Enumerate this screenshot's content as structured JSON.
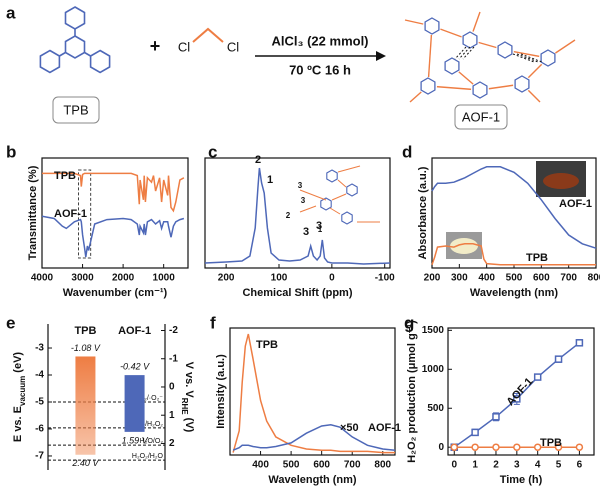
{
  "scheme": {
    "label": "a",
    "reactant": "TPB",
    "reagent_atoms": [
      "Cl",
      "Cl"
    ],
    "conditions": [
      "AlCl₃ (22 mmol)",
      "70 ºC 16 h"
    ],
    "product": "AOF-1"
  },
  "chart_data": [
    {
      "label": "b",
      "type": "line",
      "xlabel": "Wavenumber (cm⁻¹)",
      "ylabel": "Transmittance (%)",
      "xlim": [
        4000,
        400
      ],
      "xticks": [
        4000,
        3000,
        2000,
        1000
      ],
      "ylim": [
        0,
        1
      ],
      "highlight": [
        3100,
        2800
      ],
      "x": [
        4000,
        3700,
        3500,
        3400,
        3200,
        3050,
        3030,
        3000,
        2950,
        2920,
        2880,
        2850,
        2700,
        2400,
        2000,
        1800,
        1650,
        1600,
        1580,
        1500,
        1480,
        1450,
        1400,
        1300,
        1250,
        1200,
        1100,
        1050,
        1000,
        900,
        880,
        820,
        760,
        700,
        600,
        500
      ],
      "series": [
        {
          "name": "TPB",
          "color": "#ee7d43",
          "values": [
            0.86,
            0.86,
            0.86,
            0.86,
            0.86,
            0.84,
            0.74,
            0.85,
            0.86,
            0.86,
            0.86,
            0.86,
            0.86,
            0.86,
            0.86,
            0.86,
            0.84,
            0.58,
            0.8,
            0.62,
            0.84,
            0.6,
            0.82,
            0.78,
            0.84,
            0.7,
            0.82,
            0.6,
            0.8,
            0.66,
            0.84,
            0.55,
            0.52,
            0.6,
            0.8,
            0.82
          ]
        },
        {
          "name": "AOF-1",
          "color": "#4e68b8",
          "values": [
            0.47,
            0.45,
            0.38,
            0.36,
            0.42,
            0.44,
            0.42,
            0.3,
            0.18,
            0.1,
            0.2,
            0.16,
            0.4,
            0.44,
            0.45,
            0.44,
            0.4,
            0.3,
            0.38,
            0.32,
            0.4,
            0.3,
            0.42,
            0.44,
            0.42,
            0.4,
            0.43,
            0.36,
            0.42,
            0.42,
            0.38,
            0.28,
            0.38,
            0.42,
            0.44,
            0.45
          ]
        }
      ]
    },
    {
      "label": "c",
      "type": "line",
      "xlabel": "Chemical Shift (ppm)",
      "xlim": [
        240,
        -110
      ],
      "xticks": [
        200,
        100,
        0,
        -100
      ],
      "ylim": [
        0,
        1.1
      ],
      "x": [
        240,
        200,
        170,
        155,
        145,
        140,
        137,
        133,
        128,
        122,
        115,
        100,
        80,
        60,
        45,
        40,
        35,
        28,
        22,
        18,
        14,
        8,
        0,
        -30,
        -60,
        -110
      ],
      "series": [
        {
          "color": "#4e68b8",
          "values": [
            0.05,
            0.06,
            0.07,
            0.12,
            0.4,
            0.8,
            1.0,
            0.85,
            0.75,
            0.4,
            0.15,
            0.08,
            0.07,
            0.08,
            0.12,
            0.22,
            0.12,
            0.08,
            0.12,
            0.28,
            0.1,
            0.06,
            0.05,
            0.05,
            0.04,
            0.05
          ]
        }
      ],
      "peak_labels": [
        "2",
        "1",
        "3",
        "3"
      ],
      "structure_labels": [
        "3",
        "3",
        "2",
        "1"
      ]
    },
    {
      "label": "d",
      "type": "line",
      "xlabel": "Wavelength (nm)",
      "ylabel": "Absorbance (a.u.)",
      "xlim": [
        200,
        800
      ],
      "xticks": [
        200,
        300,
        400,
        500,
        600,
        700,
        800
      ],
      "ylim": [
        0,
        1
      ],
      "x": [
        200,
        210,
        220,
        250,
        280,
        300,
        320,
        350,
        380,
        390,
        400,
        450,
        500,
        550,
        600,
        650,
        700,
        750,
        800
      ],
      "series": [
        {
          "name": "AOF-1",
          "color": "#4e68b8",
          "values": [
            0.7,
            0.74,
            0.77,
            0.77,
            0.78,
            0.8,
            0.82,
            0.86,
            0.9,
            0.91,
            0.92,
            0.92,
            0.87,
            0.77,
            0.62,
            0.45,
            0.3,
            0.22,
            0.18
          ]
        },
        {
          "name": "TPB",
          "color": "#ee7d43",
          "values": [
            0.03,
            0.1,
            0.19,
            0.2,
            0.19,
            0.21,
            0.22,
            0.22,
            0.2,
            0.08,
            0.04,
            0.03,
            0.03,
            0.03,
            0.03,
            0.03,
            0.03,
            0.03,
            0.03
          ]
        }
      ]
    },
    {
      "label": "e",
      "type": "energy-level",
      "ylabel": [
        "E vs. E",
        "vacuum",
        " (eV)"
      ],
      "y2label": [
        "V vs. V",
        "RHE",
        " (V)"
      ],
      "ylim": [
        -7.52,
        -2.11
      ],
      "yticks": [
        -3,
        -4,
        -5,
        -6,
        -7
      ],
      "y2lim": [
        2.94,
        -2.23
      ],
      "y2ticks": [
        -2,
        -1,
        0,
        1,
        2
      ],
      "categories": [
        "TPB",
        "AOF-1"
      ],
      "colors": [
        "#ee7d43",
        "#4e68b8"
      ],
      "cb": [
        -1.08,
        -0.42
      ],
      "vb": [
        2.4,
        1.59
      ],
      "cb_labels": [
        "-1.08 V",
        "-0.42 V"
      ],
      "vb_labels": [
        "2.40 V",
        "1.59 V"
      ],
      "potentials": [
        {
          "label": "O₂/·O₂⁻",
          "value": 0.53
        },
        {
          "label": "O₂/H₂O₂",
          "value": 1.45
        },
        {
          "label": "H₂O/O₂",
          "value": 2.06
        },
        {
          "label": "H₂O₂/H₂O",
          "value": 2.59
        }
      ]
    },
    {
      "label": "f",
      "type": "line",
      "xlabel": "Wavelength (nm)",
      "ylabel": "Intensity (a.u.)",
      "xlim": [
        300,
        840
      ],
      "xticks": [
        400,
        500,
        600,
        700,
        800
      ],
      "ylim": [
        0,
        1.05
      ],
      "x": [
        310,
        330,
        340,
        350,
        360,
        375,
        400,
        420,
        450,
        500,
        550,
        600,
        630,
        660,
        700,
        750,
        800,
        840
      ],
      "series": [
        {
          "name": "TPB",
          "color": "#ee7d43",
          "values": [
            0.02,
            0.2,
            0.6,
            0.9,
            1.0,
            0.8,
            0.45,
            0.28,
            0.15,
            0.08,
            0.05,
            0.04,
            0.04,
            0.03,
            0.03,
            0.03,
            0.02,
            0.02
          ]
        },
        {
          "name": "AOF-1",
          "color": "#4e68b8",
          "values": [
            0.04,
            0.06,
            0.08,
            0.08,
            0.08,
            0.07,
            0.06,
            0.06,
            0.07,
            0.1,
            0.18,
            0.24,
            0.25,
            0.23,
            0.15,
            0.08,
            0.05,
            0.04
          ]
        }
      ],
      "annotations": [
        "×50"
      ]
    },
    {
      "label": "g",
      "type": "line",
      "xlabel": "Time (h)",
      "ylabel": "H₂O₂ production (μmol g⁻¹)",
      "xlim": [
        -0.3,
        6.7
      ],
      "xticks": [
        0,
        1,
        2,
        3,
        4,
        5,
        6
      ],
      "ylim": [
        -100,
        1530
      ],
      "yticks": [
        0,
        500,
        1000,
        1500
      ],
      "x": [
        0,
        1,
        2,
        3,
        4,
        5,
        6
      ],
      "series": [
        {
          "name": "AOF-1",
          "color": "#4e68b8",
          "marker": "square",
          "values": [
            0,
            190,
            390,
            620,
            900,
            1130,
            1340
          ],
          "errors": [
            0,
            40,
            50,
            70,
            30,
            40,
            40
          ]
        },
        {
          "name": "TPB",
          "color": "#ee7d43",
          "marker": "circle",
          "values": [
            0,
            0,
            0,
            0,
            0,
            0,
            0
          ]
        }
      ]
    }
  ]
}
